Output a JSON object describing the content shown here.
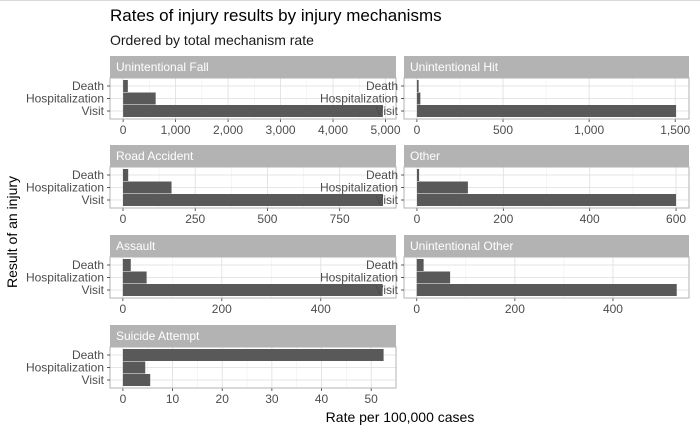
{
  "title": "Rates of injury results by injury mechanisms",
  "subtitle": "Ordered by total mechanism rate",
  "chart_data": {
    "type": "bar",
    "orientation": "horizontal",
    "title": "Rates of injury results by injury mechanisms",
    "subtitle": "Ordered by total mechanism rate",
    "xlabel": "Rate per 100,000 cases",
    "ylabel": "Result of an injury",
    "categories": [
      "Death",
      "Hospitalization",
      "Visit"
    ],
    "grid": true,
    "facet_scales": "free_x",
    "panels": [
      {
        "name": "Unintentional Fall",
        "values": [
          90,
          620,
          4950
        ],
        "ticks": [
          0,
          1000,
          2000,
          3000,
          4000,
          5000
        ],
        "tick_labels": [
          "0",
          "1,000",
          "2,000",
          "3,000",
          "4,000",
          "5,000"
        ],
        "xlim": [
          -250,
          5200
        ]
      },
      {
        "name": "Unintentional Hit",
        "values": [
          10,
          20,
          1505
        ],
        "ticks": [
          0,
          500,
          1000,
          1500
        ],
        "tick_labels": [
          "0",
          "500",
          "1,000",
          "1,500"
        ],
        "xlim": [
          -75,
          1580
        ]
      },
      {
        "name": "Road Accident",
        "values": [
          18,
          168,
          900
        ],
        "ticks": [
          0,
          250,
          500,
          750
        ],
        "tick_labels": [
          "0",
          "250",
          "500",
          "750"
        ],
        "xlim": [
          -45,
          945
        ]
      },
      {
        "name": "Other",
        "values": [
          5,
          118,
          600
        ],
        "ticks": [
          0,
          200,
          400,
          600
        ],
        "tick_labels": [
          "0",
          "200",
          "400",
          "600"
        ],
        "xlim": [
          -30,
          630
        ]
      },
      {
        "name": "Assault",
        "values": [
          16,
          48,
          525
        ],
        "ticks": [
          0,
          200,
          400
        ],
        "tick_labels": [
          "0",
          "200",
          "400"
        ],
        "xlim": [
          -26,
          552
        ]
      },
      {
        "name": "Unintentional Other",
        "values": [
          14,
          68,
          530
        ],
        "ticks": [
          0,
          200,
          400
        ],
        "tick_labels": [
          "0",
          "200",
          "400"
        ],
        "xlim": [
          -26,
          555
        ]
      },
      {
        "name": "Suicide Attempt",
        "values": [
          52.5,
          4.5,
          5.5
        ],
        "ticks": [
          0,
          10,
          20,
          30,
          40,
          50
        ],
        "tick_labels": [
          "0",
          "10",
          "20",
          "30",
          "40",
          "50"
        ],
        "xlim": [
          -2.6,
          55
        ]
      }
    ]
  },
  "colors": {
    "bar": "#595959",
    "strip": "#b3b3b3",
    "strip_text": "#ffffff",
    "grid_major": "#dedede",
    "grid_minor": "#efefef",
    "panel_border": "#b3b3b3",
    "tick_text": "#4d4d4d"
  }
}
